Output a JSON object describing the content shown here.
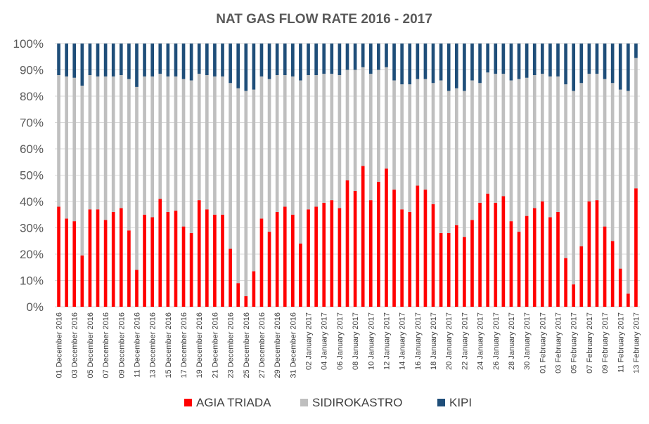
{
  "chart_data": {
    "type": "bar",
    "stacked": true,
    "normalized": true,
    "title": "NAT GAS FLOW RATE 2016 - 2017",
    "xlabel": "",
    "ylabel": "",
    "ylim": [
      0,
      100
    ],
    "yticks": [
      "0%",
      "10%",
      "20%",
      "30%",
      "40%",
      "50%",
      "60%",
      "70%",
      "80%",
      "90%",
      "100%"
    ],
    "grid": true,
    "legend_position": "bottom",
    "categories": [
      "01 December 2016",
      "02 December 2016",
      "03 December 2016",
      "04 December 2016",
      "05 December 2016",
      "06 December 2016",
      "07 December 2016",
      "08 December 2016",
      "09 December 2016",
      "10 December 2016",
      "11 December 2016",
      "12 December 2016",
      "13 December 2016",
      "14 December 2016",
      "15 December 2016",
      "16 December 2016",
      "17 December 2016",
      "18 December 2016",
      "19 December 2016",
      "20 December 2016",
      "21 December 2016",
      "22 December 2016",
      "23 December 2016",
      "24 December 2016",
      "25 December 2016",
      "26 December 2016",
      "27 December 2016",
      "28 December 2016",
      "29 December 2016",
      "30 December 2016",
      "31 December 2016",
      "01 January 2017",
      "02 January 2017",
      "03 January 2017",
      "04 January 2017",
      "05 January 2017",
      "06 January 2017",
      "07 January 2017",
      "08 January 2017",
      "09 January 2017",
      "10 January 2017",
      "11 January 2017",
      "12 January 2017",
      "13 January 2017",
      "14 January 2017",
      "15 January 2017",
      "16 January 2017",
      "17 January 2017",
      "18 January 2017",
      "19 January 2017",
      "20 January 2017",
      "21 January 2017",
      "22 January 2017",
      "23 January 2017",
      "24 January 2017",
      "25 January 2017",
      "26 January 2017",
      "27 January 2017",
      "28 January 2017",
      "29 January 2017",
      "30 January 2017",
      "31 January 2017",
      "01 February 2017",
      "02 February 2017",
      "03 February 2017",
      "04 February 2017",
      "05 February 2017",
      "06 February 2017",
      "07 February 2017",
      "08 February 2017",
      "09 February 2017",
      "10 February 2017",
      "11 February 2017",
      "12 February 2017",
      "13 February 2017"
    ],
    "series": [
      {
        "name": "AGIA TRIADA",
        "color": "#ff0000",
        "values": [
          38,
          33.5,
          32.5,
          19.5,
          37,
          37,
          33,
          36,
          37.5,
          29,
          14,
          35,
          34,
          41,
          36,
          36.5,
          30.5,
          28,
          40.5,
          37,
          35,
          35,
          22,
          9,
          4,
          13.5,
          33.5,
          28.5,
          36,
          38,
          35,
          24,
          37,
          38,
          39.5,
          40.5,
          37.5,
          48,
          44,
          53.5,
          40.5,
          47.5,
          52.5,
          44.5,
          37,
          36,
          46,
          44.5,
          39,
          28,
          28,
          31,
          26.5,
          33,
          39.5,
          43,
          39.5,
          42,
          32.5,
          28.5,
          34.5,
          37.5,
          40,
          34,
          36,
          18.5,
          8.5,
          23,
          40,
          40.5,
          30.5,
          25,
          14.5,
          5,
          45
        ]
      },
      {
        "name": "SIDIROKASTRO",
        "color": "#bfbfbf",
        "values": [
          50,
          54,
          54.5,
          64.5,
          51,
          50.5,
          54.5,
          51.5,
          50.5,
          57.5,
          69.5,
          52.5,
          53.5,
          47.5,
          51.5,
          51,
          56,
          58,
          48,
          51,
          52.5,
          52.5,
          63,
          74,
          78,
          69,
          54,
          58,
          52,
          50,
          52.5,
          62,
          51,
          50,
          49,
          48,
          50.5,
          42,
          46,
          37.5,
          48,
          42.5,
          38.5,
          41.5,
          47.5,
          48.5,
          40.5,
          42,
          46,
          58,
          54,
          52,
          55.5,
          53,
          45.5,
          46,
          49,
          46.5,
          53.5,
          58,
          52.5,
          50.5,
          48.5,
          53.5,
          51.5,
          66,
          73.5,
          62,
          48.5,
          48,
          56,
          60,
          68,
          77,
          49.5
        ]
      },
      {
        "name": "KIPI",
        "color": "#1f4e79",
        "values": [
          12,
          12.5,
          13,
          16,
          12,
          12.5,
          12.5,
          12.5,
          12,
          13.5,
          16.5,
          12.5,
          12.5,
          11.5,
          12.5,
          12.5,
          13.5,
          14,
          11.5,
          12,
          12.5,
          12.5,
          15,
          17,
          18,
          17.5,
          12.5,
          13.5,
          12,
          12,
          12.5,
          14,
          12,
          12,
          11.5,
          11.5,
          12,
          10,
          10,
          9,
          11.5,
          10,
          9,
          14,
          15.5,
          15.5,
          13.5,
          13.5,
          15,
          14,
          18,
          17,
          18,
          14,
          15,
          11,
          11.5,
          11.5,
          14,
          13.5,
          13,
          12,
          11.5,
          12.5,
          12.5,
          15.5,
          18,
          15,
          11.5,
          11.5,
          13.5,
          15,
          17.5,
          18,
          5.5
        ]
      }
    ]
  }
}
